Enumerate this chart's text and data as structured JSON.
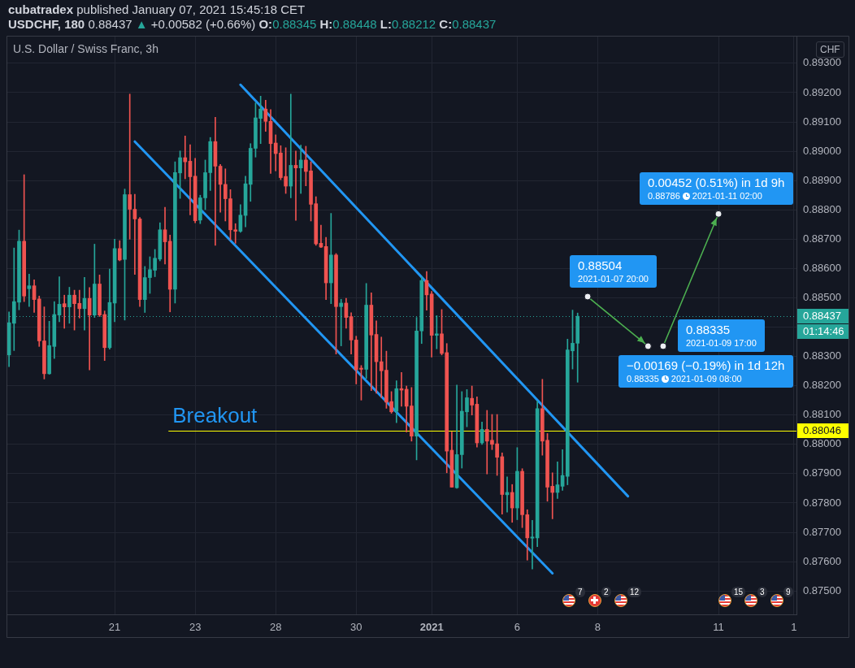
{
  "chart_data": {
    "type": "candlestick",
    "title": "U.S. Dollar / Swiss Franc, 3h",
    "subtitle": "USDCHF, 180 0.88437 ▲ +0.00582 (+0.66%) O:0.88345 H:0.88448 L:0.88212 C:0.88437",
    "ylabel": "CHF",
    "annotations": [
      "cubatradex published January 07, 2021 15:45:18 CET",
      "01:14:46",
      "Breakout",
      "7",
      "2",
      "12",
      "15",
      "3",
      "9"
    ],
    "categories": [
      null,
      null,
      null,
      null,
      null,
      null,
      null,
      null,
      null,
      null,
      null,
      null,
      null,
      null,
      null,
      null,
      null,
      null,
      null,
      null,
      null,
      "21",
      null,
      null,
      null,
      null,
      null,
      null,
      null,
      null,
      null,
      null,
      null,
      null,
      null,
      null,
      null,
      "23",
      null,
      null,
      null,
      null,
      null,
      null,
      null,
      null,
      null,
      null,
      null,
      null,
      null,
      null,
      null,
      "28",
      null,
      null,
      null,
      null,
      null,
      null,
      null,
      null,
      null,
      null,
      null,
      null,
      null,
      null,
      null,
      "30",
      null,
      null,
      null,
      null,
      null,
      null,
      null,
      null,
      null,
      null,
      null,
      null,
      null,
      null,
      "2021",
      null,
      null,
      null,
      null,
      null,
      null,
      null,
      null,
      null,
      null,
      null,
      null,
      null,
      null,
      null,
      null,
      "6",
      null,
      null,
      null,
      null,
      null,
      null,
      null,
      null,
      null,
      null,
      null,
      null,
      null,
      null,
      null,
      "8",
      null,
      null,
      null,
      null,
      null,
      null,
      null,
      null,
      null,
      null,
      null,
      null,
      null,
      null,
      null,
      null,
      null,
      null,
      null,
      null,
      null,
      null,
      null,
      "11",
      null,
      null,
      null,
      null,
      null,
      null,
      null,
      null,
      null,
      null,
      null,
      null,
      null,
      null,
      "1"
    ],
    "ohlc": [
      [
        0.88305,
        0.88452,
        0.88265,
        0.88415
      ],
      [
        0.88413,
        0.8867,
        0.8832,
        0.88487
      ],
      [
        0.88485,
        0.88731,
        0.88459,
        0.88693
      ],
      [
        0.88693,
        0.8892,
        0.88487,
        0.88506
      ],
      [
        0.88531,
        0.88581,
        0.8847,
        0.88541
      ],
      [
        0.88541,
        0.88561,
        0.8845,
        0.88494
      ],
      [
        0.88496,
        0.88506,
        0.88334,
        0.88353
      ],
      [
        0.88353,
        0.88469,
        0.88223,
        0.88241
      ],
      [
        0.88241,
        0.8842,
        0.88239,
        0.88337
      ],
      [
        0.88334,
        0.88487,
        0.88293,
        0.88443
      ],
      [
        0.88441,
        0.88572,
        0.88418,
        0.88478
      ],
      [
        0.8848,
        0.88509,
        0.88396,
        0.88469
      ],
      [
        0.88469,
        0.88536,
        0.88413,
        0.88509
      ],
      [
        0.88509,
        0.88526,
        0.8839,
        0.8848
      ],
      [
        0.88481,
        0.88526,
        0.88431,
        0.88463
      ],
      [
        0.88463,
        0.8857,
        0.8839,
        0.88498
      ],
      [
        0.88498,
        0.88535,
        0.88254,
        0.88441
      ],
      [
        0.88441,
        0.88683,
        0.88433,
        0.88547
      ],
      [
        0.88547,
        0.88578,
        0.88436,
        0.88441
      ],
      [
        0.88443,
        0.88455,
        0.88286,
        0.8833
      ],
      [
        0.8833,
        0.88598,
        0.88325,
        0.88484
      ],
      [
        0.88482,
        0.887,
        0.88418,
        0.88668
      ],
      [
        0.88668,
        0.88695,
        0.88626,
        0.88629
      ],
      [
        0.88631,
        0.88871,
        0.88424,
        0.88852
      ],
      [
        0.88852,
        0.89195,
        0.887,
        0.88802
      ],
      [
        0.88802,
        0.88853,
        0.8858,
        0.88769
      ],
      [
        0.88769,
        0.88774,
        0.8847,
        0.88494
      ],
      [
        0.88494,
        0.88607,
        0.8845,
        0.88569
      ],
      [
        0.88569,
        0.8864,
        0.88515,
        0.88596
      ],
      [
        0.88594,
        0.88665,
        0.88572,
        0.88635
      ],
      [
        0.88632,
        0.88756,
        0.88626,
        0.88732
      ],
      [
        0.88732,
        0.88809,
        0.88615,
        0.88691
      ],
      [
        0.88693,
        0.88714,
        0.88452,
        0.88529
      ],
      [
        0.88529,
        0.88964,
        0.88482,
        0.88927
      ],
      [
        0.88926,
        0.89001,
        0.88839,
        0.88978
      ],
      [
        0.88978,
        0.89052,
        0.88906,
        0.88964
      ],
      [
        0.88966,
        0.89022,
        0.88783,
        0.88913
      ],
      [
        0.88915,
        0.88976,
        0.88756,
        0.88763
      ],
      [
        0.88765,
        0.8885,
        0.88753,
        0.88841
      ],
      [
        0.88841,
        0.8897,
        0.88801,
        0.88927
      ],
      [
        0.88927,
        0.89047,
        0.88866,
        0.89033
      ],
      [
        0.89033,
        0.89116,
        0.88679,
        0.88949
      ],
      [
        0.88949,
        0.88955,
        0.88792,
        0.88887
      ],
      [
        0.88887,
        0.8894,
        0.88762,
        0.88838
      ],
      [
        0.88838,
        0.88869,
        0.88697,
        0.88732
      ],
      [
        0.88732,
        0.88753,
        0.88686,
        0.88727
      ],
      [
        0.88727,
        0.88818,
        0.88723,
        0.88782
      ],
      [
        0.88781,
        0.88915,
        0.88742,
        0.88889
      ],
      [
        0.88887,
        0.89026,
        0.88829,
        0.8901
      ],
      [
        0.8901,
        0.89165,
        0.8898,
        0.89114
      ],
      [
        0.89112,
        0.89188,
        0.89026,
        0.89144
      ],
      [
        0.89144,
        0.89174,
        0.89068,
        0.89102
      ],
      [
        0.89102,
        0.89142,
        0.88924,
        0.89026
      ],
      [
        0.89028,
        0.89056,
        0.88933,
        0.88992
      ],
      [
        0.88994,
        0.89019,
        0.88903,
        0.8891
      ],
      [
        0.88914,
        0.89012,
        0.88856,
        0.88881
      ],
      [
        0.88881,
        0.89195,
        0.88841,
        0.88952
      ],
      [
        0.88952,
        0.89001,
        0.88764,
        0.88943
      ],
      [
        0.88943,
        0.89021,
        0.88856,
        0.8897
      ],
      [
        0.8897,
        0.89017,
        0.88882,
        0.88931
      ],
      [
        0.88933,
        0.88964,
        0.88762,
        0.88819
      ],
      [
        0.88821,
        0.88845,
        0.88679,
        0.88684
      ],
      [
        0.88686,
        0.88748,
        0.88671,
        0.88673
      ],
      [
        0.88675,
        0.88706,
        0.88494,
        0.88551
      ],
      [
        0.88551,
        0.88788,
        0.8848,
        0.88646
      ],
      [
        0.88646,
        0.88651,
        0.88308,
        0.8847
      ],
      [
        0.8847,
        0.88495,
        0.88336,
        0.88482
      ],
      [
        0.88482,
        0.88498,
        0.88396,
        0.88433
      ],
      [
        0.88436,
        0.88449,
        0.88308,
        0.88356
      ],
      [
        0.88356,
        0.88369,
        0.88206,
        0.88255
      ],
      [
        0.8826,
        0.88269,
        0.88151,
        0.88256
      ],
      [
        0.88256,
        0.88549,
        0.88225,
        0.88475
      ],
      [
        0.88475,
        0.88517,
        0.88183,
        0.88373
      ],
      [
        0.88375,
        0.88421,
        0.88174,
        0.88282
      ],
      [
        0.88282,
        0.88366,
        0.8816,
        0.88251
      ],
      [
        0.88253,
        0.88318,
        0.88123,
        0.88144
      ],
      [
        0.88146,
        0.8818,
        0.88106,
        0.88111
      ],
      [
        0.88113,
        0.88217,
        0.88074,
        0.8819
      ],
      [
        0.8819,
        0.88245,
        0.8813,
        0.88185
      ],
      [
        0.88188,
        0.88199,
        0.88042,
        0.8813
      ],
      [
        0.88131,
        0.88194,
        0.88011,
        0.88028
      ],
      [
        0.88028,
        0.88433,
        0.87947,
        0.88387
      ],
      [
        0.88387,
        0.88571,
        0.88344,
        0.88559
      ],
      [
        0.88559,
        0.8859,
        0.88458,
        0.8851
      ],
      [
        0.88513,
        0.88522,
        0.88298,
        0.88372
      ],
      [
        0.88372,
        0.88439,
        0.88326,
        0.88377
      ],
      [
        0.88377,
        0.8846,
        0.88305,
        0.8831
      ],
      [
        0.88313,
        0.88344,
        0.87903,
        0.87977
      ],
      [
        0.8798,
        0.88042,
        0.87854,
        0.87854
      ],
      [
        0.87852,
        0.88202,
        0.8785,
        0.87965
      ],
      [
        0.87965,
        0.8818,
        0.87919,
        0.88113
      ],
      [
        0.88111,
        0.88187,
        0.8806,
        0.88159
      ],
      [
        0.88157,
        0.88199,
        0.881,
        0.88134
      ],
      [
        0.88137,
        0.88162,
        0.87991,
        0.88005
      ],
      [
        0.88005,
        0.88076,
        0.88,
        0.88051
      ],
      [
        0.88051,
        0.88116,
        0.87899,
        0.88011
      ],
      [
        0.88014,
        0.88102,
        0.87982,
        0.88
      ],
      [
        0.88002,
        0.88102,
        0.87894,
        0.87956
      ],
      [
        0.87958,
        0.87971,
        0.87762,
        0.87829
      ],
      [
        0.87828,
        0.87889,
        0.87769,
        0.87836
      ],
      [
        0.87836,
        0.87863,
        0.87734,
        0.87783
      ],
      [
        0.87783,
        0.87989,
        0.87743,
        0.87908
      ],
      [
        0.87908,
        0.87917,
        0.87716,
        0.8776
      ],
      [
        0.8776,
        0.87777,
        0.87605,
        0.87681
      ],
      [
        0.8768,
        0.87741,
        0.87575,
        0.87684
      ],
      [
        0.87681,
        0.88148,
        0.87651,
        0.88122
      ],
      [
        0.88122,
        0.88222,
        0.87963,
        0.88011
      ],
      [
        0.88014,
        0.88037,
        0.87806,
        0.87854
      ],
      [
        0.87857,
        0.87903,
        0.87746,
        0.87836
      ],
      [
        0.87836,
        0.8794,
        0.87815,
        0.87862
      ],
      [
        0.87857,
        0.87982,
        0.87843,
        0.87894
      ],
      [
        0.87891,
        0.88359,
        0.87862,
        0.88322
      ],
      [
        0.88319,
        0.88458,
        0.88257,
        0.88345
      ],
      [
        0.88345,
        0.88448,
        0.88212,
        0.88437
      ],
      null,
      null,
      null,
      null,
      null,
      null,
      null,
      null,
      null,
      null,
      null,
      null,
      null,
      null,
      null,
      null,
      null,
      null,
      null,
      null,
      null,
      null,
      null,
      null,
      null,
      null,
      null,
      null,
      null,
      null,
      null,
      null,
      null,
      null,
      null,
      null,
      null,
      null,
      null,
      null,
      null,
      null,
      null
    ],
    "colors": [
      "#26a69a",
      "#26a69a",
      "#26a69a",
      "#ef5350",
      "#26a69a",
      "#ef5350",
      "#ef5350",
      "#ef5350",
      "#26a69a",
      "#26a69a",
      "#26a69a",
      "#ef5350",
      "#26a69a",
      "#ef5350",
      "#ef5350",
      "#26a69a",
      "#ef5350",
      "#26a69a",
      "#ef5350",
      "#ef5350",
      "#26a69a",
      "#26a69a",
      "#ef5350",
      "#26a69a",
      "#ef5350",
      "#ef5350",
      "#ef5350",
      "#26a69a",
      "#26a69a",
      "#26a69a",
      "#26a69a",
      "#ef5350",
      "#ef5350",
      "#26a69a",
      "#26a69a",
      "#ef5350",
      "#ef5350",
      "#ef5350",
      "#26a69a",
      "#26a69a",
      "#26a69a",
      "#ef5350",
      "#ef5350",
      "#ef5350",
      "#ef5350",
      "#ef5350",
      "#26a69a",
      "#26a69a",
      "#26a69a",
      "#26a69a",
      "#26a69a",
      "#ef5350",
      "#ef5350",
      "#ef5350",
      "#ef5350",
      "#ef5350",
      "#26a69a",
      "#ef5350",
      "#26a69a",
      "#ef5350",
      "#ef5350",
      "#ef5350",
      "#ef5350",
      "#ef5350",
      "#26a69a",
      "#ef5350",
      "#26a69a",
      "#ef5350",
      "#ef5350",
      "#ef5350",
      "#ef5350",
      "#26a69a",
      "#ef5350",
      "#ef5350",
      "#ef5350",
      "#ef5350",
      "#ef5350",
      "#26a69a",
      "#ef5350",
      "#ef5350",
      "#ef5350",
      "#26a69a",
      "#26a69a",
      "#ef5350",
      "#ef5350",
      "#26a69a",
      "#ef5350",
      "#ef5350",
      "#ef5350",
      "#26a69a",
      "#26a69a",
      "#26a69a",
      "#ef5350",
      "#ef5350",
      "#26a69a",
      "#ef5350",
      "#ef5350",
      "#ef5350",
      "#ef5350",
      "#26a69a",
      "#ef5350",
      "#26a69a",
      "#ef5350",
      "#ef5350",
      "#26a69a",
      "#26a69a",
      "#ef5350",
      "#ef5350",
      "#ef5350",
      "#26a69a",
      "#26a69a",
      "#26a69a",
      "#26a69a",
      "#26a69a",
      null,
      null,
      null,
      null,
      null,
      null,
      null,
      null,
      null,
      null,
      null,
      null,
      null,
      null,
      null,
      null,
      null,
      null,
      null,
      null,
      null,
      null,
      null,
      null,
      null,
      null,
      null,
      null,
      null,
      null,
      null,
      null,
      null,
      null,
      null,
      null,
      null,
      null,
      null,
      null,
      null,
      null,
      null
    ],
    "series": [
      {
        "type": "line",
        "color": "#2196f3",
        "values": [
          null,
          null,
          null,
          null,
          null,
          null,
          null,
          null,
          null,
          null,
          null,
          null,
          null,
          null,
          null,
          null,
          null,
          null,
          null,
          null,
          null,
          null,
          null,
          null,
          null,
          null,
          null,
          null,
          null,
          null,
          null,
          null,
          null,
          null,
          null,
          null,
          null,
          null,
          null,
          null,
          null,
          null,
          null,
          null,
          null,
          null,
          0.89227,
          null,
          null,
          null,
          null,
          null,
          null,
          null,
          null,
          null,
          null,
          null,
          null,
          null,
          null,
          null,
          null,
          null,
          null,
          null,
          null,
          null,
          null,
          null,
          null,
          null,
          null,
          null,
          null,
          null,
          null,
          null,
          null,
          null,
          null,
          null,
          null,
          null,
          null,
          null,
          null,
          null,
          null,
          null,
          null,
          null,
          null,
          null,
          null,
          null,
          null,
          null,
          null,
          null,
          null,
          null,
          null,
          null,
          null,
          null,
          null,
          null,
          null,
          null,
          null,
          null,
          null,
          null,
          null,
          null,
          null,
          null,
          null,
          null,
          null,
          null,
          null,
          0.87823,
          null,
          null,
          null,
          null,
          null,
          null,
          null,
          null,
          null,
          null,
          null,
          null,
          null,
          null,
          null,
          null,
          null,
          null,
          null,
          null,
          null,
          null,
          null,
          null,
          null,
          null,
          null,
          null,
          null,
          null,
          null,
          null,
          null
        ]
      },
      {
        "type": "line",
        "color": "#2196f3",
        "values": [
          null,
          null,
          null,
          null,
          null,
          null,
          null,
          null,
          null,
          null,
          null,
          null,
          null,
          null,
          null,
          null,
          null,
          null,
          null,
          null,
          null,
          null,
          null,
          null,
          null,
          0.89033,
          null,
          null,
          null,
          null,
          null,
          null,
          null,
          null,
          null,
          null,
          null,
          null,
          null,
          null,
          null,
          null,
          null,
          null,
          null,
          null,
          null,
          null,
          null,
          null,
          null,
          null,
          null,
          null,
          null,
          null,
          null,
          null,
          null,
          null,
          null,
          null,
          null,
          null,
          null,
          null,
          null,
          null,
          null,
          null,
          null,
          null,
          null,
          null,
          null,
          null,
          null,
          null,
          null,
          null,
          null,
          null,
          null,
          null,
          null,
          null,
          null,
          null,
          null,
          null,
          null,
          null,
          null,
          null,
          null,
          null,
          null,
          null,
          null,
          null,
          null,
          null,
          null,
          null,
          null,
          null,
          null,
          null,
          0.8756,
          null,
          null,
          null,
          null,
          null,
          null,
          null,
          null,
          null,
          null,
          null,
          null,
          null,
          null,
          null,
          null,
          null,
          null,
          null,
          null,
          null,
          null,
          null,
          null,
          null,
          null,
          null,
          null,
          null,
          null,
          null,
          null,
          null,
          null,
          null,
          null,
          null,
          null,
          null,
          null,
          null,
          null,
          null,
          null,
          null,
          null,
          null,
          null
        ]
      },
      {
        "type": "line",
        "color": "#4caf50",
        "marker": "circle",
        "values": [
          null,
          null,
          null,
          null,
          null,
          null,
          null,
          null,
          null,
          null,
          null,
          null,
          null,
          null,
          null,
          null,
          null,
          null,
          null,
          null,
          null,
          null,
          null,
          null,
          null,
          null,
          null,
          null,
          null,
          null,
          null,
          null,
          null,
          null,
          null,
          null,
          null,
          null,
          null,
          null,
          null,
          null,
          null,
          null,
          null,
          null,
          null,
          null,
          null,
          null,
          null,
          null,
          null,
          null,
          null,
          null,
          null,
          null,
          null,
          null,
          null,
          null,
          null,
          null,
          null,
          null,
          null,
          null,
          null,
          null,
          null,
          null,
          null,
          null,
          null,
          null,
          null,
          null,
          null,
          null,
          null,
          null,
          null,
          null,
          null,
          null,
          null,
          null,
          null,
          null,
          null,
          null,
          null,
          null,
          null,
          null,
          null,
          null,
          null,
          null,
          null,
          null,
          null,
          null,
          null,
          null,
          null,
          null,
          null,
          null,
          null,
          null,
          null,
          null,
          null,
          0.88504,
          null,
          null,
          null,
          null,
          null,
          null,
          null,
          null,
          null,
          null,
          null,
          0.88335,
          null,
          null,
          null,
          null,
          null,
          null,
          null,
          null,
          null,
          null,
          null,
          null,
          null,
          null,
          null,
          null,
          null,
          null,
          null,
          null,
          null,
          null,
          null,
          null,
          null,
          null,
          null,
          null,
          null
        ],
        "value_labels": [
          null,
          null,
          null,
          null,
          null,
          null,
          null,
          null,
          null,
          null,
          null,
          null,
          null,
          null,
          null,
          null,
          null,
          null,
          null,
          null,
          null,
          null,
          null,
          null,
          null,
          null,
          null,
          null,
          null,
          null,
          null,
          null,
          null,
          null,
          null,
          null,
          null,
          null,
          null,
          null,
          null,
          null,
          null,
          null,
          null,
          null,
          null,
          null,
          null,
          null,
          null,
          null,
          null,
          null,
          null,
          null,
          null,
          null,
          null,
          null,
          null,
          null,
          null,
          null,
          null,
          null,
          null,
          null,
          null,
          null,
          null,
          null,
          null,
          null,
          null,
          null,
          null,
          null,
          null,
          null,
          null,
          null,
          null,
          null,
          null,
          null,
          null,
          null,
          null,
          null,
          null,
          null,
          null,
          null,
          null,
          null,
          null,
          null,
          null,
          null,
          null,
          null,
          null,
          null,
          null,
          null,
          null,
          null,
          null,
          null,
          null,
          null,
          null,
          null,
          null,
          "0.88504\n2021-01-07 20:00",
          null,
          null,
          null,
          null,
          null,
          null,
          null,
          null,
          null,
          null,
          null,
          "−0.00169 (−0.19%) in 1d 12h\n0.88335 2021-01-09 08:00",
          null,
          null,
          null,
          null,
          null,
          null,
          null,
          null,
          null,
          null,
          null,
          null,
          null,
          null,
          null,
          null,
          null,
          null,
          null,
          null,
          null,
          null,
          null,
          null,
          null,
          null,
          null,
          null,
          null
        ]
      },
      {
        "type": "line",
        "color": "#4caf50",
        "marker": "circle",
        "values": [
          null,
          null,
          null,
          null,
          null,
          null,
          null,
          null,
          null,
          null,
          null,
          null,
          null,
          null,
          null,
          null,
          null,
          null,
          null,
          null,
          null,
          null,
          null,
          null,
          null,
          null,
          null,
          null,
          null,
          null,
          null,
          null,
          null,
          null,
          null,
          null,
          null,
          null,
          null,
          null,
          null,
          null,
          null,
          null,
          null,
          null,
          null,
          null,
          null,
          null,
          null,
          null,
          null,
          null,
          null,
          null,
          null,
          null,
          null,
          null,
          null,
          null,
          null,
          null,
          null,
          null,
          null,
          null,
          null,
          null,
          null,
          null,
          null,
          null,
          null,
          null,
          null,
          null,
          null,
          null,
          null,
          null,
          null,
          null,
          null,
          null,
          null,
          null,
          null,
          null,
          null,
          null,
          null,
          null,
          null,
          null,
          null,
          null,
          null,
          null,
          null,
          null,
          null,
          null,
          null,
          null,
          null,
          null,
          null,
          null,
          null,
          null,
          null,
          null,
          null,
          null,
          null,
          null,
          null,
          null,
          null,
          null,
          null,
          null,
          null,
          null,
          null,
          null,
          null,
          null,
          0.88335,
          null,
          null,
          null,
          null,
          null,
          null,
          null,
          null,
          null,
          null,
          0.88786,
          null,
          null,
          null,
          null,
          null,
          null,
          null,
          null,
          null,
          null,
          null,
          null,
          null,
          null,
          null
        ],
        "value_labels": [
          null,
          null,
          null,
          null,
          null,
          null,
          null,
          null,
          null,
          null,
          null,
          null,
          null,
          null,
          null,
          null,
          null,
          null,
          null,
          null,
          null,
          null,
          null,
          null,
          null,
          null,
          null,
          null,
          null,
          null,
          null,
          null,
          null,
          null,
          null,
          null,
          null,
          null,
          null,
          null,
          null,
          null,
          null,
          null,
          null,
          null,
          null,
          null,
          null,
          null,
          null,
          null,
          null,
          null,
          null,
          null,
          null,
          null,
          null,
          null,
          null,
          null,
          null,
          null,
          null,
          null,
          null,
          null,
          null,
          null,
          null,
          null,
          null,
          null,
          null,
          null,
          null,
          null,
          null,
          null,
          null,
          null,
          null,
          null,
          null,
          null,
          null,
          null,
          null,
          null,
          null,
          null,
          null,
          null,
          null,
          null,
          null,
          null,
          null,
          null,
          null,
          null,
          null,
          null,
          null,
          null,
          null,
          null,
          null,
          null,
          null,
          null,
          null,
          null,
          null,
          null,
          null,
          null,
          null,
          null,
          null,
          null,
          null,
          null,
          null,
          null,
          null,
          null,
          null,
          null,
          "0.88335\n2021-01-09 17:00",
          null,
          null,
          null,
          null,
          null,
          null,
          null,
          null,
          null,
          null,
          "0.00452 (0.51%) in 1d 9h\n0.88786 2021-01-11 02:00",
          null,
          null,
          null,
          null,
          null,
          null,
          null,
          null,
          null,
          null,
          null,
          null,
          null,
          null,
          null
        ]
      }
    ],
    "ylim": [
      0.8742,
      0.89394
    ],
    "yticks": [
      {
        "value": 0.875,
        "label": "0.87500"
      },
      {
        "value": 0.876,
        "label": "0.87600"
      },
      {
        "value": 0.877,
        "label": "0.87700"
      },
      {
        "value": 0.878,
        "label": "0.87800"
      },
      {
        "value": 0.879,
        "label": "0.87900"
      },
      {
        "value": 0.88,
        "label": "0.88000"
      },
      {
        "value": 0.881,
        "label": "0.88100"
      },
      {
        "value": 0.882,
        "label": "0.88200"
      },
      {
        "value": 0.883,
        "label": "0.88300"
      },
      {
        "value": 0.884,
        "label": null
      },
      {
        "value": 0.885,
        "label": "0.88500"
      },
      {
        "value": 0.886,
        "label": "0.88600"
      },
      {
        "value": 0.887,
        "label": "0.88700"
      },
      {
        "value": 0.888,
        "label": "0.88800"
      },
      {
        "value": 0.889,
        "label": "0.88900"
      },
      {
        "value": 0.89,
        "label": "0.89000"
      },
      {
        "value": 0.891,
        "label": "0.89100"
      },
      {
        "value": 0.892,
        "label": "0.89200"
      },
      {
        "value": 0.893,
        "label": "0.89300"
      }
    ],
    "ref_lines": [
      {
        "axis": "y",
        "value": 0.88437,
        "label": "0.88437",
        "color": "#26a69a",
        "line_style": "dotted"
      },
      {
        "axis": "y",
        "value": 0.88046,
        "label": "0.88046",
        "color": "#ffff00"
      }
    ],
    "grid": true
  }
}
